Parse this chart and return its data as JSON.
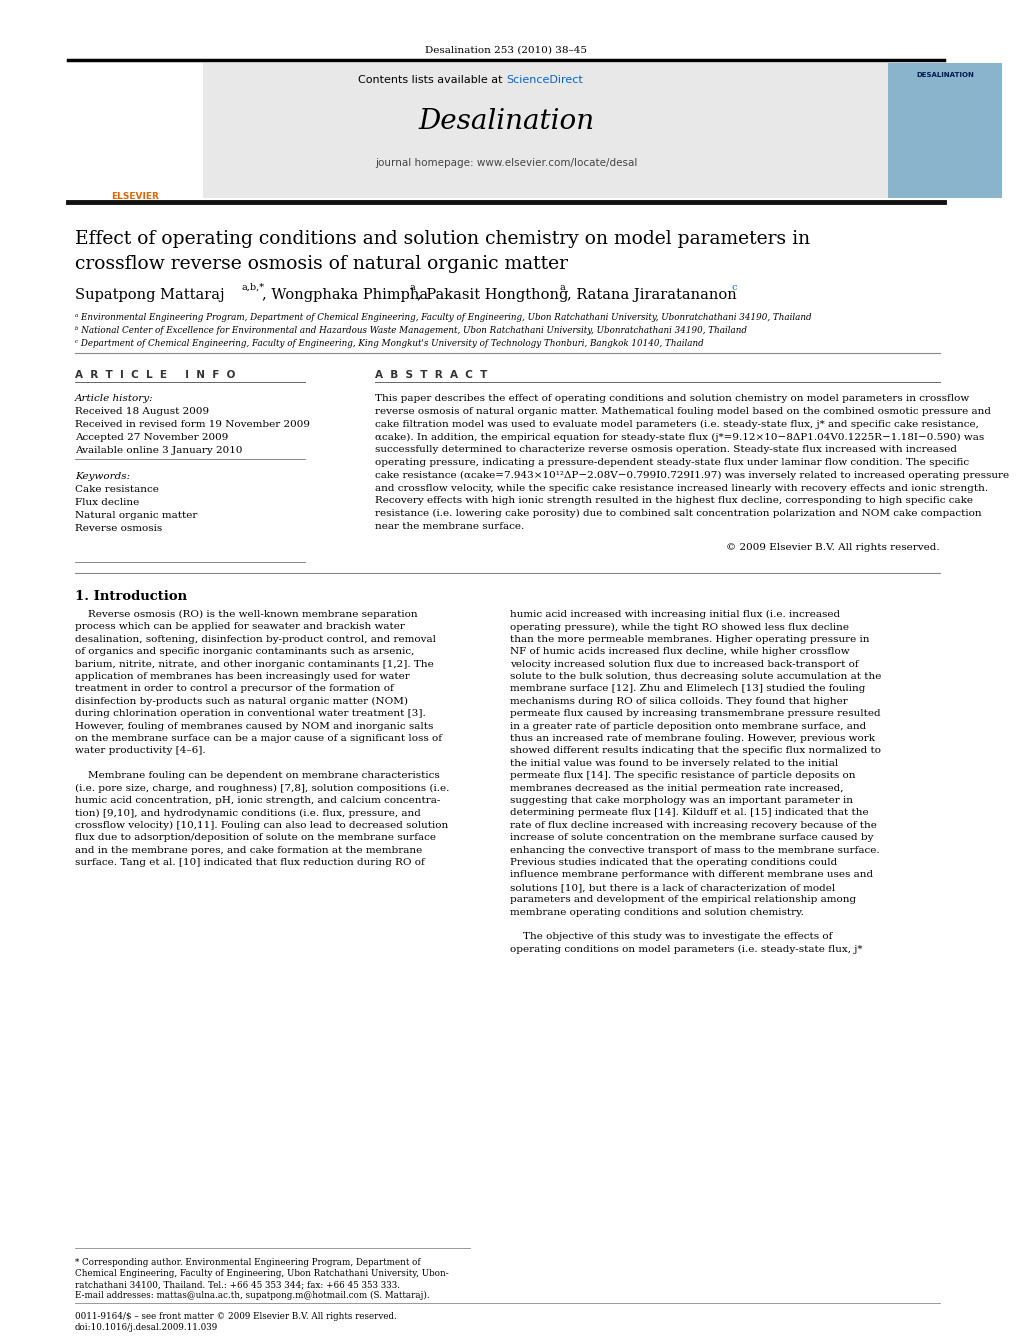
{
  "page_bg": "#ffffff",
  "journal_ref": "Desalination 253 (2010) 38–45",
  "header_bg": "#e8e8e8",
  "header_link_color": "#0066cc",
  "journal_name": "Desalination",
  "journal_homepage": "journal homepage: www.elsevier.com/locate/desal",
  "title_line1": "Effect of operating conditions and solution chemistry on model parameters in",
  "title_line2": "crossflow reverse osmosis of natural organic matter",
  "affil_a": "ᵃ Environmental Engineering Program, Department of Chemical Engineering, Faculty of Engineering, Ubon Ratchathani University, Ubonratchathani 34190, Thailand",
  "affil_b": "ᵇ National Center of Excellence for Environmental and Hazardous Waste Management, Ubon Ratchathani University, Ubonratchathani 34190, Thailand",
  "affil_c": "ᶜ Department of Chemical Engineering, Faculty of Engineering, King Mongkut's University of Technology Thonburi, Bangkok 10140, Thailand",
  "article_info_header": "A  R  T  I  C  L  E     I  N  F  O",
  "abstract_header": "A  B  S  T  R  A  C  T",
  "received1": "Received 18 August 2009",
  "received2": "Received in revised form 19 November 2009",
  "accepted": "Accepted 27 November 2009",
  "available": "Available online 3 January 2010",
  "keyword1": "Cake resistance",
  "keyword2": "Flux decline",
  "keyword3": "Natural organic matter",
  "keyword4": "Reverse osmosis",
  "abstract_lines": [
    "This paper describes the effect of operating conditions and solution chemistry on model parameters in crossflow",
    "reverse osmosis of natural organic matter. Mathematical fouling model based on the combined osmotic pressure and",
    "cake filtration model was used to evaluate model parameters (i.e. steady-state flux, j* and specific cake resistance,",
    "αcake). In addition, the empirical equation for steady-state flux (j*=9.12×10−8ΔP1.04V0.1225R−1.18I−0.590) was",
    "successfully determined to characterize reverse osmosis operation. Steady-state flux increased with increased",
    "operating pressure, indicating a pressure-dependent steady-state flux under laminar flow condition. The specific",
    "cake resistance (αcake=7.943×10¹²ΔP−2.08V−0.799I0.729I1.97) was inversely related to increased operating pressure",
    "and crossflow velocity, while the specific cake resistance increased linearly with recovery effects and ionic strength.",
    "Recovery effects with high ionic strength resulted in the highest flux decline, corresponding to high specific cake",
    "resistance (i.e. lowering cake porosity) due to combined salt concentration polarization and NOM cake compaction",
    "near the membrane surface."
  ],
  "copyright": "© 2009 Elsevier B.V. All rights reserved.",
  "intro_header": "1. Introduction",
  "col1_lines": [
    "    Reverse osmosis (RO) is the well-known membrane separation",
    "process which can be applied for seawater and brackish water",
    "desalination, softening, disinfection by-product control, and removal",
    "of organics and specific inorganic contaminants such as arsenic,",
    "barium, nitrite, nitrate, and other inorganic contaminants [1,2]. The",
    "application of membranes has been increasingly used for water",
    "treatment in order to control a precursor of the formation of",
    "disinfection by-products such as natural organic matter (NOM)",
    "during chlorination operation in conventional water treatment [3].",
    "However, fouling of membranes caused by NOM and inorganic salts",
    "on the membrane surface can be a major cause of a significant loss of",
    "water productivity [4–6].",
    "",
    "    Membrane fouling can be dependent on membrane characteristics",
    "(i.e. pore size, charge, and roughness) [7,8], solution compositions (i.e.",
    "humic acid concentration, pH, ionic strength, and calcium concentra-",
    "tion) [9,10], and hydrodynamic conditions (i.e. flux, pressure, and",
    "crossflow velocity) [10,11]. Fouling can also lead to decreased solution",
    "flux due to adsorption/deposition of solute on the membrane surface",
    "and in the membrane pores, and cake formation at the membrane",
    "surface. Tang et al. [10] indicated that flux reduction during RO of"
  ],
  "col2_lines": [
    "humic acid increased with increasing initial flux (i.e. increased",
    "operating pressure), while the tight RO showed less flux decline",
    "than the more permeable membranes. Higher operating pressure in",
    "NF of humic acids increased flux decline, while higher crossflow",
    "velocity increased solution flux due to increased back-transport of",
    "solute to the bulk solution, thus decreasing solute accumulation at the",
    "membrane surface [12]. Zhu and Elimelech [13] studied the fouling",
    "mechanisms during RO of silica colloids. They found that higher",
    "permeate flux caused by increasing transmembrane pressure resulted",
    "in a greater rate of particle deposition onto membrane surface, and",
    "thus an increased rate of membrane fouling. However, previous work",
    "showed different results indicating that the specific flux normalized to",
    "the initial value was found to be inversely related to the initial",
    "permeate flux [14]. The specific resistance of particle deposits on",
    "membranes decreased as the initial permeation rate increased,",
    "suggesting that cake morphology was an important parameter in",
    "determining permeate flux [14]. Kilduff et al. [15] indicated that the",
    "rate of flux decline increased with increasing recovery because of the",
    "increase of solute concentration on the membrane surface caused by",
    "enhancing the convective transport of mass to the membrane surface.",
    "Previous studies indicated that the operating conditions could",
    "influence membrane performance with different membrane uses and",
    "solutions [10], but there is a lack of characterization of model",
    "parameters and development of the empirical relationship among",
    "membrane operating conditions and solution chemistry.",
    "",
    "    The objective of this study was to investigate the effects of",
    "operating conditions on model parameters (i.e. steady-state flux, j*"
  ],
  "footer1a": "* Corresponding author. Environmental Engineering Program, Department of",
  "footer1b": "Chemical Engineering, Faculty of Engineering, Ubon Ratchathani University, Ubon-",
  "footer1c": "ratchathani 34100, Thailand. Tel.: +66 45 353 344; fax: +66 45 353 333.",
  "footer2": "E-mail addresses: mattas@ulna.ac.th, supatpong.m@hotmail.com (S. Mattaraj).",
  "footer3": "0011-9164/$ – see front matter © 2009 Elsevier B.V. All rights reserved.",
  "footer4": "doi:10.1016/j.desal.2009.11.039"
}
